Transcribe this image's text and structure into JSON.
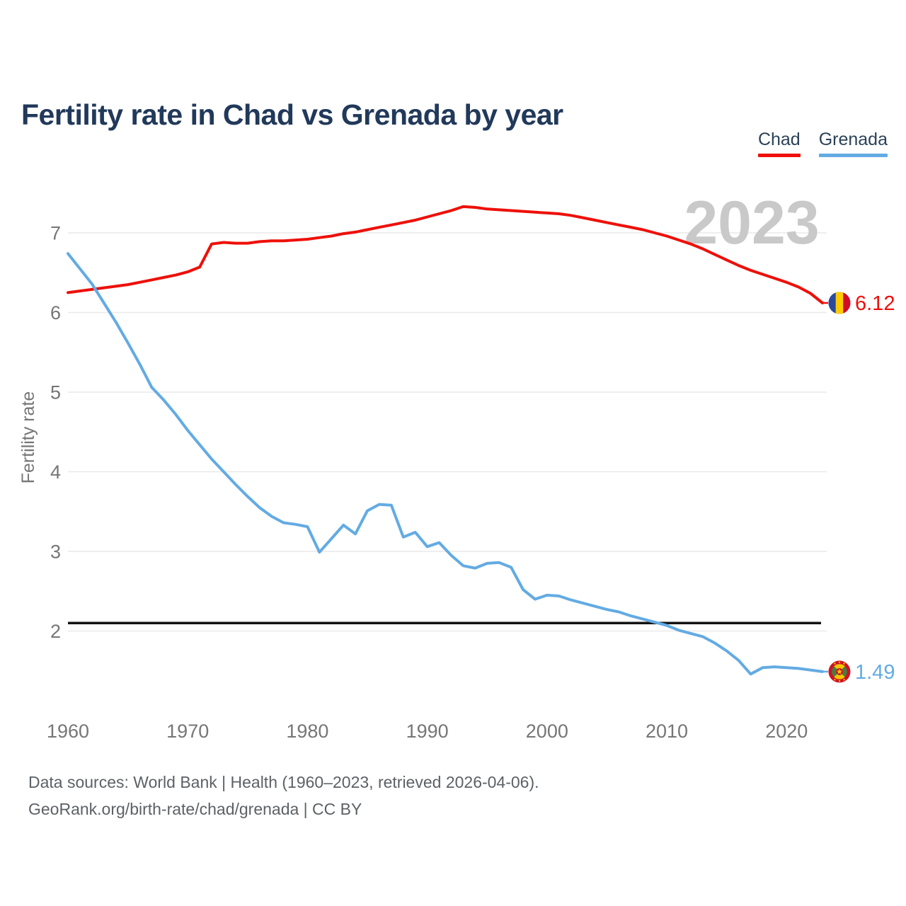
{
  "header": {
    "title": "Fertility rate in Chad vs Grenada by year"
  },
  "legend": [
    {
      "label": "Chad",
      "color": "#ee1009"
    },
    {
      "label": "Grenada",
      "color": "#63abe3"
    }
  ],
  "watermark": "2023",
  "colors": {
    "title": "#21395a",
    "grid": "#e9e9e9",
    "axis_text": "#767676",
    "reference_line": "#141414",
    "watermark": "#c9c9c9",
    "footer_text": "#5c6166"
  },
  "footer": {
    "line1": "Data sources: World Bank | Health (1960–2023, retrieved 2026-04-06).",
    "line2": "GeoRank.org/birth-rate/chad/grenada | CC BY"
  },
  "chart_data": {
    "type": "line",
    "title": "Fertility rate in Chad vs Grenada by year",
    "xlabel": "",
    "ylabel": "Fertility rate",
    "grid": "horizontal",
    "legend_position": "top-right",
    "yticks": [
      2,
      3,
      4,
      5,
      6,
      7
    ],
    "xticks": [
      1960,
      1970,
      1980,
      1990,
      2000,
      2010,
      2020
    ],
    "ylim": [
      1.3,
      7.6
    ],
    "xlim": [
      1960,
      2023
    ],
    "reference_line": {
      "value": 2.1,
      "color": "#141414"
    },
    "x": [
      1960,
      1961,
      1962,
      1963,
      1964,
      1965,
      1966,
      1967,
      1968,
      1969,
      1970,
      1971,
      1972,
      1973,
      1974,
      1975,
      1976,
      1977,
      1978,
      1979,
      1980,
      1981,
      1982,
      1983,
      1984,
      1985,
      1986,
      1987,
      1988,
      1989,
      1990,
      1991,
      1992,
      1993,
      1994,
      1995,
      1996,
      1997,
      1998,
      1999,
      2000,
      2001,
      2002,
      2003,
      2004,
      2005,
      2006,
      2007,
      2008,
      2009,
      2010,
      2011,
      2012,
      2013,
      2014,
      2015,
      2016,
      2017,
      2018,
      2019,
      2020,
      2021,
      2022,
      2023
    ],
    "series": [
      {
        "name": "Chad",
        "color": "#ee1009",
        "end_label": "6.12",
        "flag": "chad",
        "values": [
          6.25,
          6.27,
          6.29,
          6.31,
          6.33,
          6.35,
          6.38,
          6.41,
          6.44,
          6.47,
          6.51,
          6.57,
          6.86,
          6.88,
          6.87,
          6.87,
          6.89,
          6.9,
          6.9,
          6.91,
          6.92,
          6.94,
          6.96,
          6.99,
          7.01,
          7.04,
          7.07,
          7.1,
          7.13,
          7.16,
          7.2,
          7.24,
          7.28,
          7.33,
          7.32,
          7.3,
          7.29,
          7.28,
          7.27,
          7.26,
          7.25,
          7.24,
          7.22,
          7.19,
          7.16,
          7.13,
          7.1,
          7.07,
          7.04,
          7.0,
          6.96,
          6.91,
          6.86,
          6.8,
          6.73,
          6.66,
          6.59,
          6.53,
          6.48,
          6.43,
          6.38,
          6.32,
          6.24,
          6.12
        ]
      },
      {
        "name": "Grenada",
        "color": "#63abe3",
        "end_label": "1.49",
        "flag": "grenada",
        "values": [
          6.74,
          6.55,
          6.36,
          6.12,
          5.88,
          5.62,
          5.35,
          5.06,
          4.9,
          4.72,
          4.52,
          4.34,
          4.16,
          4.0,
          3.84,
          3.69,
          3.55,
          3.44,
          3.36,
          3.34,
          3.31,
          2.99,
          3.16,
          3.33,
          3.22,
          3.51,
          3.59,
          3.58,
          3.18,
          3.24,
          3.06,
          3.11,
          2.95,
          2.82,
          2.79,
          2.85,
          2.86,
          2.8,
          2.52,
          2.4,
          2.45,
          2.44,
          2.39,
          2.35,
          2.31,
          2.27,
          2.24,
          2.19,
          2.15,
          2.11,
          2.07,
          2.01,
          1.97,
          1.93,
          1.85,
          1.75,
          1.63,
          1.46,
          1.54,
          1.55,
          1.54,
          1.53,
          1.51,
          1.49
        ]
      }
    ]
  }
}
